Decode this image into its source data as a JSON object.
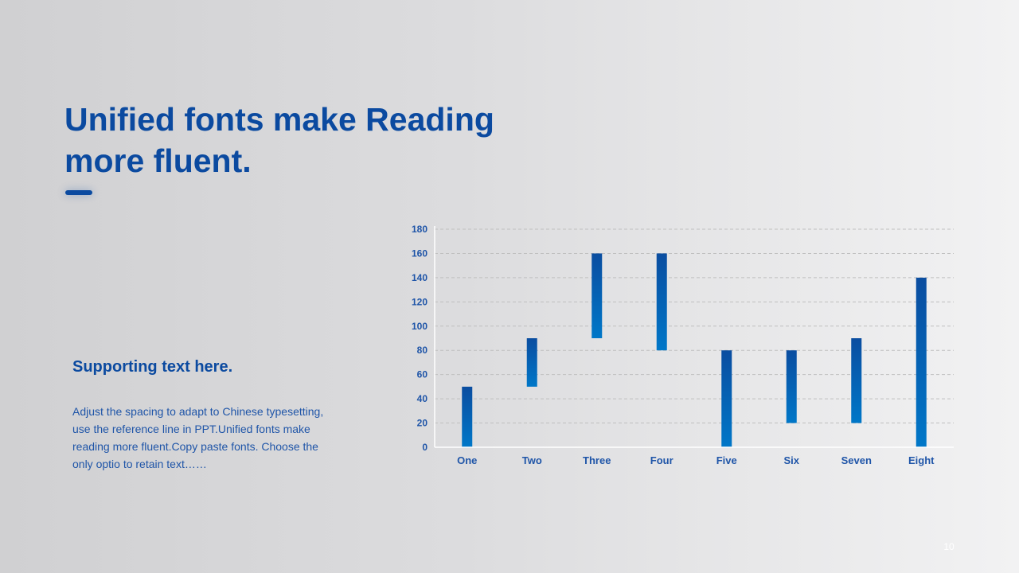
{
  "slide": {
    "title": "Unified fonts make Reading more fluent.",
    "support_heading": "Supporting text here.",
    "support_body": "Adjust the spacing to adapt to Chinese typesetting, use the reference line in PPT.Unified fonts make reading more fluent.Copy paste fonts. Choose the only optio to retain text……",
    "page_number": "10"
  },
  "colors": {
    "title": "#0b4aa0",
    "bar_top": "#0a4da0",
    "bar_bottom": "#0077c8",
    "axis_label": "#1f55a8",
    "gridline": "#bfbfbf"
  },
  "chart_data": {
    "type": "bar",
    "subtype": "floating-range",
    "categories": [
      "One",
      "Two",
      "Three",
      "Four",
      "Five",
      "Six",
      "Seven",
      "Eight"
    ],
    "series": [
      {
        "low": [
          0,
          50,
          90,
          80,
          0,
          20,
          20,
          0
        ],
        "high": [
          50,
          90,
          160,
          160,
          80,
          80,
          90,
          140
        ]
      }
    ],
    "yticks": [
      "0",
      "20",
      "40",
      "60",
      "80",
      "100",
      "120",
      "140",
      "160",
      "180"
    ],
    "ylim": [
      0,
      180
    ],
    "grid": true,
    "legend": "none"
  }
}
